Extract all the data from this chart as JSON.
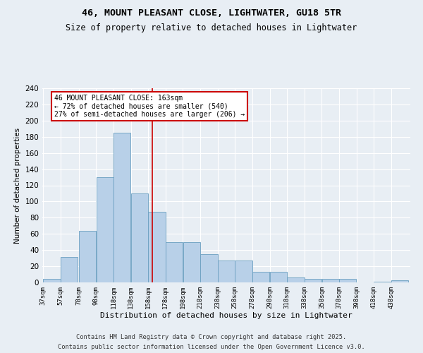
{
  "title": "46, MOUNT PLEASANT CLOSE, LIGHTWATER, GU18 5TR",
  "subtitle": "Size of property relative to detached houses in Lightwater",
  "xlabel": "Distribution of detached houses by size in Lightwater",
  "ylabel": "Number of detached properties",
  "categories": [
    "37sqm",
    "57sqm",
    "78sqm",
    "98sqm",
    "118sqm",
    "138sqm",
    "158sqm",
    "178sqm",
    "198sqm",
    "218sqm",
    "238sqm",
    "258sqm",
    "278sqm",
    "298sqm",
    "318sqm",
    "338sqm",
    "358sqm",
    "378sqm",
    "398sqm",
    "418sqm",
    "438sqm"
  ],
  "values": [
    4,
    31,
    64,
    130,
    185,
    110,
    87,
    50,
    50,
    35,
    27,
    27,
    13,
    13,
    6,
    4,
    4,
    4,
    0,
    1,
    3
  ],
  "bar_color": "#b8d0e8",
  "bar_edge_color": "#6a9fc0",
  "vline_x": 163,
  "vline_color": "#cc0000",
  "annotation_text": "46 MOUNT PLEASANT CLOSE: 163sqm\n← 72% of detached houses are smaller (540)\n27% of semi-detached houses are larger (206) →",
  "annotation_box_color": "#ffffff",
  "annotation_box_edge_color": "#cc0000",
  "ylim": [
    0,
    240
  ],
  "yticks": [
    0,
    20,
    40,
    60,
    80,
    100,
    120,
    140,
    160,
    180,
    200,
    220,
    240
  ],
  "background_color": "#e8eef4",
  "grid_color": "#ffffff",
  "footer_line1": "Contains HM Land Registry data © Crown copyright and database right 2025.",
  "footer_line2": "Contains public sector information licensed under the Open Government Licence v3.0.",
  "bin_width": 20
}
